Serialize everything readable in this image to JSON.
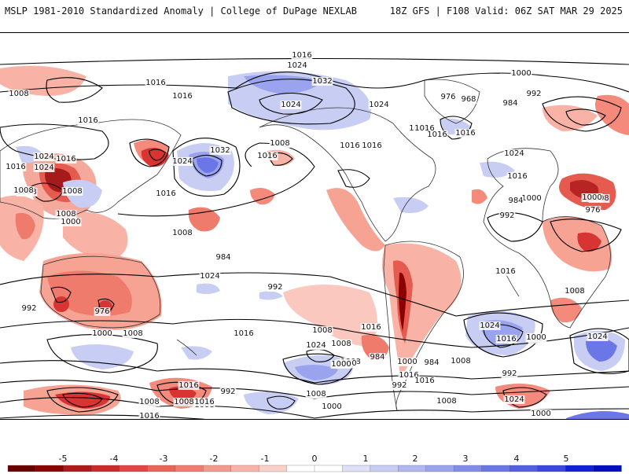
{
  "header": {
    "left_title": "MSLP 1981-2010 Standardized Anomaly | College of DuPage NEXLAB",
    "right_title": "18Z GFS | F108 Valid: 06Z SAT MAR 29 2025"
  },
  "colorbar": {
    "ticks": [
      "-5",
      "-4",
      "-3",
      "-2",
      "-1",
      "0",
      "1",
      "2",
      "3",
      "4",
      "5"
    ],
    "colors": [
      "#8b0000",
      "#cc1f1f",
      "#e24646",
      "#f07a6e",
      "#f9b3a8",
      "#ffffff",
      "#c8cdf3",
      "#9aa3ee",
      "#6b77e6",
      "#3b47df",
      "#1020d8"
    ]
  },
  "map": {
    "isobar_labels": [
      {
        "text": "1016"
      },
      {
        "text": "1024"
      },
      {
        "text": "1032"
      },
      {
        "text": "1024"
      },
      {
        "text": "1016"
      },
      {
        "text": "1008"
      },
      {
        "text": "1016"
      },
      {
        "text": "1016"
      },
      {
        "text": "1008"
      },
      {
        "text": "1032"
      },
      {
        "text": "1024"
      },
      {
        "text": "1016"
      },
      {
        "text": "1008"
      },
      {
        "text": "1016"
      },
      {
        "text": "1024"
      },
      {
        "text": "1024"
      },
      {
        "text": "1016"
      },
      {
        "text": "1008"
      },
      {
        "text": "1000"
      },
      {
        "text": "1008"
      },
      {
        "text": "1008"
      },
      {
        "text": "1016"
      },
      {
        "text": "1008"
      },
      {
        "text": "1016"
      },
      {
        "text": "1016"
      },
      {
        "text": "1008"
      },
      {
        "text": "1024"
      },
      {
        "text": "1016"
      },
      {
        "text": "1016"
      },
      {
        "text": "1000"
      },
      {
        "text": "1024"
      },
      {
        "text": "1016"
      },
      {
        "text": "1000"
      },
      {
        "text": "992"
      },
      {
        "text": "984"
      },
      {
        "text": "976"
      },
      {
        "text": "968"
      },
      {
        "text": "984"
      },
      {
        "text": "1016"
      },
      {
        "text": "992"
      },
      {
        "text": "1008"
      },
      {
        "text": "1000"
      },
      {
        "text": "976"
      },
      {
        "text": "992"
      },
      {
        "text": "1008"
      },
      {
        "text": "1016"
      },
      {
        "text": "1024"
      },
      {
        "text": "1024"
      },
      {
        "text": "1016"
      },
      {
        "text": "992"
      },
      {
        "text": "1000"
      },
      {
        "text": "1008"
      },
      {
        "text": "992"
      },
      {
        "text": "984"
      },
      {
        "text": "992"
      },
      {
        "text": "984"
      },
      {
        "text": "1016"
      },
      {
        "text": "1008"
      },
      {
        "text": "1000"
      },
      {
        "text": "992"
      },
      {
        "text": "984"
      },
      {
        "text": "976"
      },
      {
        "text": "992"
      },
      {
        "text": "1008"
      },
      {
        "text": "1000"
      },
      {
        "text": "1016"
      },
      {
        "text": "1024"
      },
      {
        "text": "1024"
      },
      {
        "text": "1008"
      },
      {
        "text": "1000"
      },
      {
        "text": "1008"
      },
      {
        "text": "1000"
      },
      {
        "text": "1008"
      },
      {
        "text": "1016"
      },
      {
        "text": "1024"
      },
      {
        "text": "1008"
      },
      {
        "text": "1016"
      },
      {
        "text": "1008"
      },
      {
        "text": "1008"
      },
      {
        "text": "1016"
      },
      {
        "text": "992"
      },
      {
        "text": "1008"
      },
      {
        "text": "1000"
      },
      {
        "text": "1016"
      },
      {
        "text": "1016"
      },
      {
        "text": "1008"
      },
      {
        "text": "1024"
      },
      {
        "text": "1000"
      },
      {
        "text": "1024"
      },
      {
        "text": "1032"
      },
      {
        "text": "1016"
      },
      {
        "text": "1008"
      },
      {
        "text": "1016"
      }
    ]
  }
}
